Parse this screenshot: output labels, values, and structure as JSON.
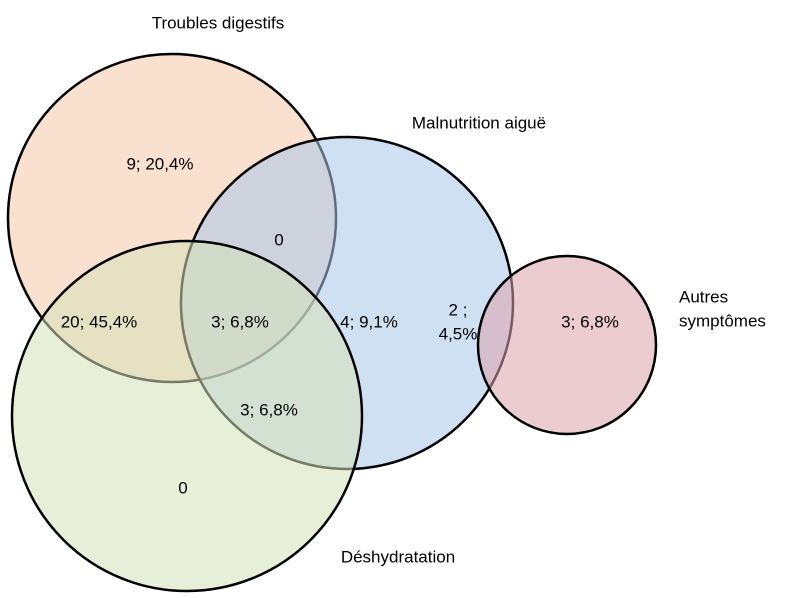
{
  "sets": [
    {
      "label": [
        "Troubles digestifs"
      ]
    },
    {
      "label": [
        "Malnutrition aiguë"
      ]
    },
    {
      "label": [
        "Autres",
        "symptômes"
      ]
    },
    {
      "label": [
        "Déshydratation"
      ]
    }
  ],
  "regions": [
    {
      "label": [
        "9; 20,4%"
      ]
    },
    {
      "label": [
        "0"
      ]
    },
    {
      "label": [
        "20; 45,4%"
      ]
    },
    {
      "label": [
        "3; 6,8%"
      ]
    },
    {
      "label": [
        "4; 9,1%"
      ]
    },
    {
      "label": [
        "2 ;",
        "4,5%"
      ]
    },
    {
      "label": [
        "3; 6,8%"
      ]
    },
    {
      "label": [
        "3; 6,8%"
      ]
    },
    {
      "label": [
        "0"
      ]
    }
  ]
}
